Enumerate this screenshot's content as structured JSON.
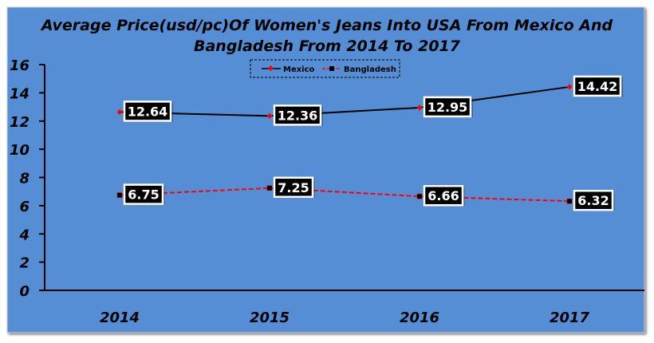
{
  "chart_data": {
    "type": "line",
    "title_lines": [
      "Average Price(usd/pc)Of Women's Jeans Into USA From Mexico And",
      "Bangladesh From 2014 To 2017"
    ],
    "categories": [
      "2014",
      "2015",
      "2016",
      "2017"
    ],
    "ylim": [
      0,
      16
    ],
    "yticks": [
      0,
      2,
      4,
      6,
      8,
      10,
      12,
      14,
      16
    ],
    "xlabel": "",
    "ylabel": "",
    "grid": false,
    "legend_position": "top-center",
    "series": [
      {
        "name": "Mexico",
        "values": [
          12.64,
          12.36,
          12.95,
          14.42
        ],
        "color": "#000000",
        "marker_color": "#ff0000",
        "dash": false,
        "labels": [
          "12.64",
          "12.36",
          "12.95",
          "14.42"
        ]
      },
      {
        "name": "Bangladesh",
        "values": [
          6.75,
          7.25,
          6.66,
          6.32
        ],
        "color": "#ff0000",
        "marker_color": "#000000",
        "dash": true,
        "labels": [
          "6.75",
          "7.25",
          "6.66",
          "6.32"
        ]
      }
    ],
    "background_color": "#558ed5"
  }
}
